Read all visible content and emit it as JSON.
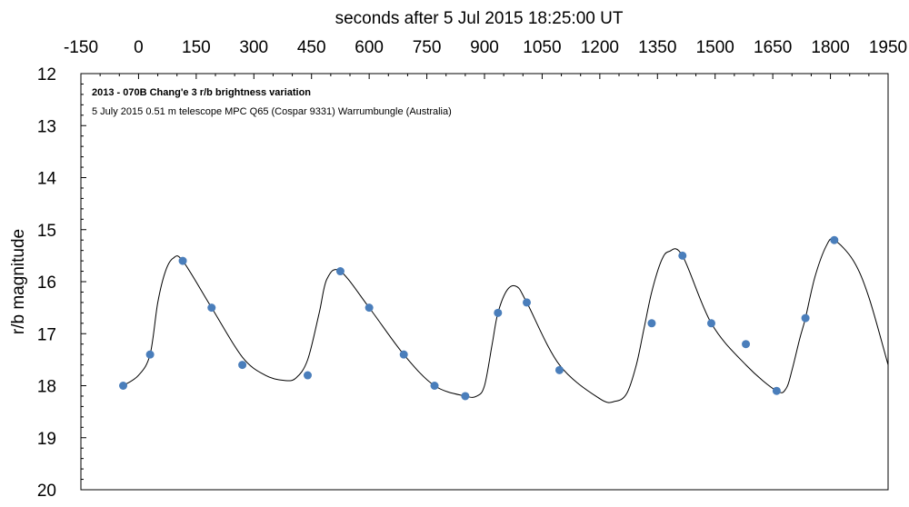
{
  "chart_data": {
    "type": "scatter",
    "title": "",
    "xlabel": "seconds after 5 Jul 2015  18:25:00 UT",
    "ylabel": "r/b magnitude",
    "xlim": [
      -150,
      1950
    ],
    "ylim": [
      12,
      20
    ],
    "y_inverted": true,
    "x_axis_position": "top",
    "x_ticks": [
      -150,
      0,
      150,
      300,
      450,
      600,
      750,
      900,
      1050,
      1200,
      1350,
      1500,
      1650,
      1800,
      1950
    ],
    "y_ticks": [
      12,
      13,
      14,
      15,
      16,
      17,
      18,
      19,
      20
    ],
    "grid": false,
    "annotations": [
      "2013 - 070B Chang'e 3 r/b  brightness variation",
      "5 July 2015   0.51 m telescope MPC Q65 (Cospar 9331) Warrumbungle (Australia)"
    ],
    "series": [
      {
        "type": "scatter",
        "color": "#4a7ebb",
        "x": [
          -40,
          30,
          115,
          190,
          270,
          440,
          525,
          600,
          690,
          770,
          850,
          935,
          1010,
          1095,
          1335,
          1415,
          1490,
          1580,
          1660,
          1735,
          1810
        ],
        "y": [
          18.0,
          17.4,
          15.6,
          16.5,
          17.6,
          17.8,
          15.8,
          16.5,
          17.4,
          18.0,
          18.2,
          16.6,
          16.4,
          17.7,
          16.8,
          15.5,
          16.8,
          17.2,
          18.1,
          16.7,
          15.2
        ]
      },
      {
        "type": "line",
        "color": "#000000",
        "x": [
          -40,
          0,
          30,
          50,
          70,
          90,
          115,
          190,
          270,
          330,
          380,
          410,
          440,
          470,
          490,
          525,
          600,
          690,
          770,
          850,
          880,
          900,
          920,
          935,
          960,
          985,
          1010,
          1095,
          1200,
          1240,
          1270,
          1295,
          1315,
          1335,
          1360,
          1380,
          1415,
          1490,
          1580,
          1660,
          1685,
          1700,
          1720,
          1735,
          1760,
          1790,
          1810,
          1860,
          1900,
          1950
        ],
        "y": [
          18.0,
          17.8,
          17.4,
          16.4,
          15.8,
          15.55,
          15.6,
          16.5,
          17.45,
          17.8,
          17.9,
          17.85,
          17.5,
          16.6,
          15.95,
          15.8,
          16.5,
          17.4,
          18.0,
          18.2,
          18.2,
          18.0,
          17.2,
          16.6,
          16.15,
          16.1,
          16.4,
          17.6,
          18.25,
          18.3,
          18.15,
          17.6,
          16.9,
          16.2,
          15.6,
          15.42,
          15.5,
          16.8,
          17.6,
          18.1,
          18.05,
          17.7,
          17.1,
          16.7,
          15.9,
          15.3,
          15.2,
          15.6,
          16.3,
          17.6
        ]
      }
    ]
  }
}
